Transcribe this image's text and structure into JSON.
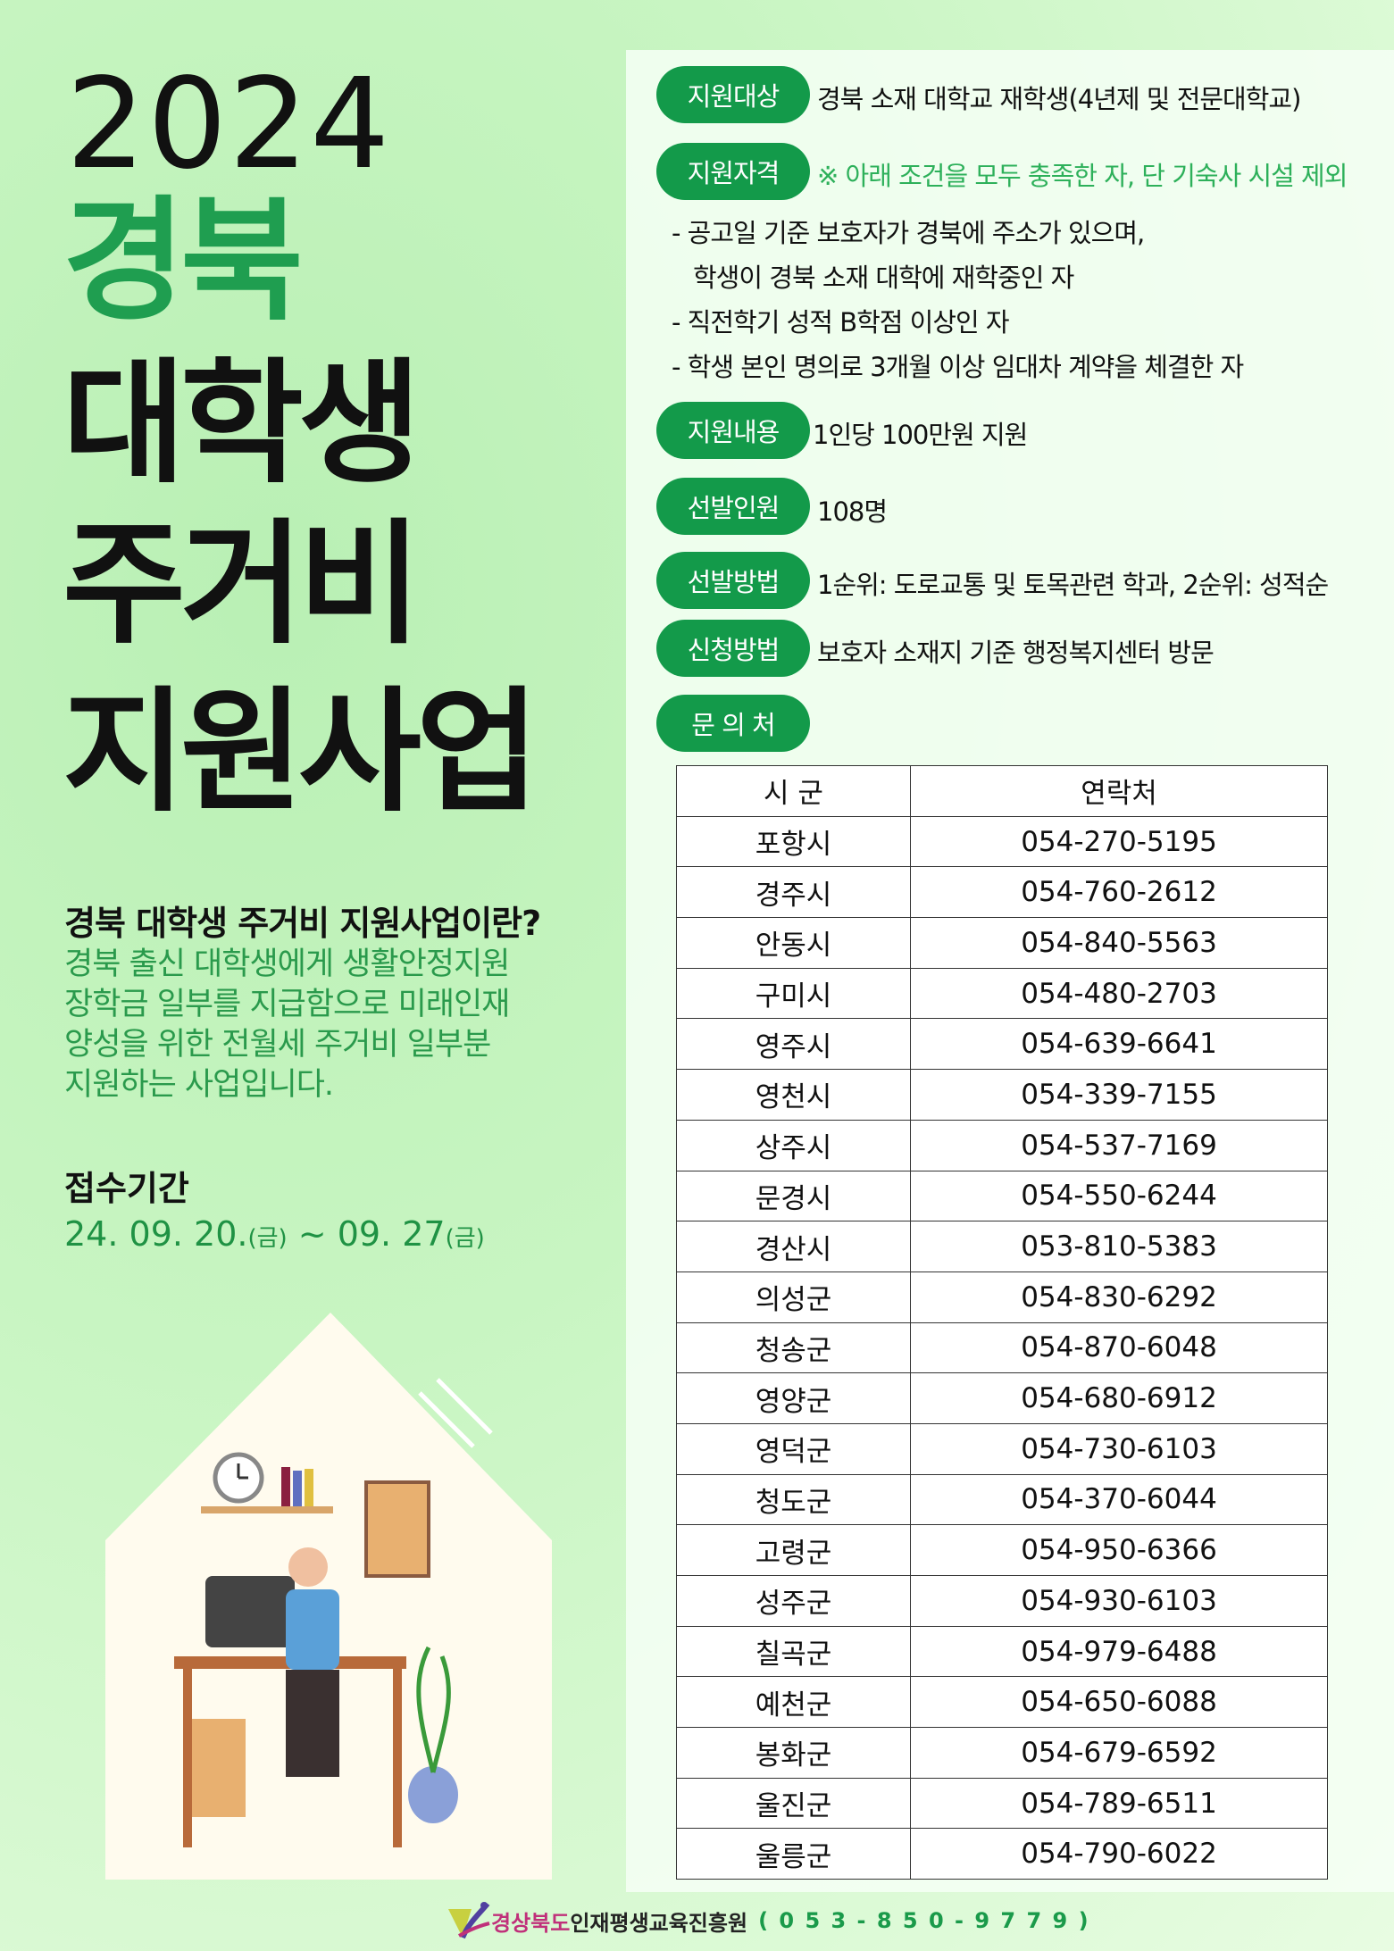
{
  "title": {
    "year": "2024",
    "region": "경북",
    "line1": "대학생",
    "line2": "주거비",
    "line3": "지원사업"
  },
  "intro": {
    "question": "경북 대학생 주거비 지원사업이란?",
    "lines": [
      "경북 출신 대학생에게 생활안정지원",
      "장학금 일부를 지급함으로 미래인재",
      "양성을 위한 전월세 주거비 일부분",
      "지원하는 사업입니다."
    ]
  },
  "period": {
    "label": "접수기간",
    "start": "24. 09. 20.",
    "start_day": "(금)",
    "sep": " ~ ",
    "end": "09. 27",
    "end_day": "(금)"
  },
  "info": [
    {
      "label": "지원대상",
      "value": "경북 소재 대학교 재학생(4년제 및 전문대학교)"
    },
    {
      "label": "지원자격",
      "value": "※ 아래 조건을 모두 충족한 자, 단 기숙사 시설 제외"
    },
    {
      "label": "지원내용",
      "value": "1인당 100만원 지원"
    },
    {
      "label": "선발인원",
      "value": "108명"
    },
    {
      "label": "선발방법",
      "value": "1순위: 도로교통 및 토목관련 학과, 2순위: 성적순"
    },
    {
      "label": "신청방법",
      "value": "보호자 소재지 기준  행정복지센터 방문"
    },
    {
      "label": "문 의 처",
      "value": ""
    }
  ],
  "requirements": [
    "- 공고일 기준 보호자가 경북에 주소가 있으며,",
    "  학생이 경북 소재 대학에 재학중인 자",
    "- 직전학기 성적 B학점 이상인 자",
    "- 학생 본인 명의로 3개월 이상 임대차 계약을 체결한 자"
  ],
  "contacts": {
    "headers": [
      "시  군",
      "연락처"
    ],
    "rows": [
      [
        "포항시",
        "054-270-5195"
      ],
      [
        "경주시",
        "054-760-2612"
      ],
      [
        "안동시",
        "054-840-5563"
      ],
      [
        "구미시",
        "054-480-2703"
      ],
      [
        "영주시",
        "054-639-6641"
      ],
      [
        "영천시",
        "054-339-7155"
      ],
      [
        "상주시",
        "054-537-7169"
      ],
      [
        "문경시",
        "054-550-6244"
      ],
      [
        "경산시",
        "053-810-5383"
      ],
      [
        "의성군",
        "054-830-6292"
      ],
      [
        "청송군",
        "054-870-6048"
      ],
      [
        "영양군",
        "054-680-6912"
      ],
      [
        "영덕군",
        "054-730-6103"
      ],
      [
        "청도군",
        "054-370-6044"
      ],
      [
        "고령군",
        "054-950-6366"
      ],
      [
        "성주군",
        "054-930-6103"
      ],
      [
        "칠곡군",
        "054-979-6488"
      ],
      [
        "예천군",
        "054-650-6088"
      ],
      [
        "봉화군",
        "054-679-6592"
      ],
      [
        "울진군",
        "054-789-6511"
      ],
      [
        "울릉군",
        "054-790-6022"
      ]
    ]
  },
  "footer": {
    "org_prefix": "경상북도",
    "org_name": "인재평생교육진흥원",
    "phone": "( 0 5 3 - 8 5 0 - 9 7 7 9 )"
  },
  "colors": {
    "accent": "#139a4a",
    "title_green": "#1f9e50",
    "org_pink": "#c0307a"
  }
}
